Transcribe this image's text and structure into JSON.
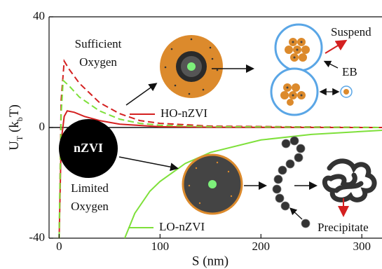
{
  "chart_data": {
    "type": "line",
    "y_label": [
      "U",
      "T",
      " (k",
      "b",
      "T)"
    ],
    "x_label": "S (nm)",
    "xlim": [
      -10,
      320
    ],
    "ylim": [
      -40,
      40
    ],
    "xticks": [
      0,
      100,
      200,
      300
    ],
    "yticks": [
      40,
      0,
      -40
    ],
    "zero_line": true,
    "series": [
      {
        "name": "HO-nZVI",
        "color": "#d42020",
        "dash": false,
        "x": [
          0,
          2,
          5,
          8,
          15,
          25,
          40,
          60,
          100,
          150,
          320
        ],
        "values": [
          -40,
          -5,
          4,
          6,
          5.5,
          4,
          2.5,
          1.2,
          0.3,
          0.1,
          0
        ]
      },
      {
        "color": "#d42020",
        "dash": true,
        "x": [
          0,
          2,
          5,
          10,
          20,
          40,
          60,
          80,
          100,
          150,
          320
        ],
        "values": [
          -40,
          10,
          24,
          21,
          16,
          9,
          5,
          2.5,
          1.5,
          0.5,
          0
        ]
      },
      {
        "color": "#7ee03a",
        "dash": true,
        "x": [
          0,
          2,
          4,
          10,
          20,
          40,
          60,
          80,
          100,
          150,
          320
        ],
        "values": [
          -40,
          5,
          17,
          15,
          11,
          6,
          3,
          1.5,
          0.8,
          0.3,
          0
        ]
      },
      {
        "name": "LO-nZVI",
        "color": "#7ee03a",
        "dash": false,
        "x": [
          65,
          75,
          90,
          100,
          125,
          150,
          200,
          250,
          320
        ],
        "values": [
          -40,
          -31,
          -23,
          -19.5,
          -13,
          -9,
          -4.5,
          -2.5,
          -1
        ]
      }
    ],
    "annotations": [
      "Sufficient",
      "Oxygen",
      "Limited",
      "Oxygen",
      "nZVI",
      "Suspend",
      "EB",
      "Precipitate"
    ]
  }
}
